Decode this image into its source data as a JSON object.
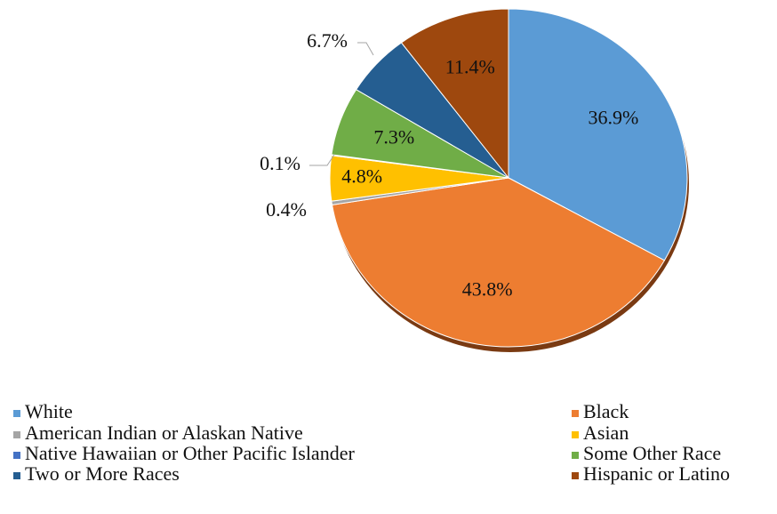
{
  "chart_data": {
    "type": "pie",
    "categories": [
      "White",
      "Black",
      "American Indian or Alaskan Native",
      "Asian",
      "Native Hawaiian or Other Pacific Islander",
      "Some Other Race",
      "Two or More Races",
      "Hispanic or Latino"
    ],
    "values": [
      36.9,
      43.8,
      0.4,
      4.8,
      0.1,
      7.3,
      6.7,
      11.4
    ],
    "value_labels": [
      "36.9%",
      "43.8%",
      "0.4%",
      "4.8%",
      "0.1%",
      "7.3%",
      "6.7%",
      "11.4%"
    ],
    "colors": [
      "#5b9bd5",
      "#ed7d31",
      "#a5a5a5",
      "#ffc000",
      "#4472c4",
      "#70ad47",
      "#255e91",
      "#9e480e"
    ],
    "legend": "bottom"
  }
}
